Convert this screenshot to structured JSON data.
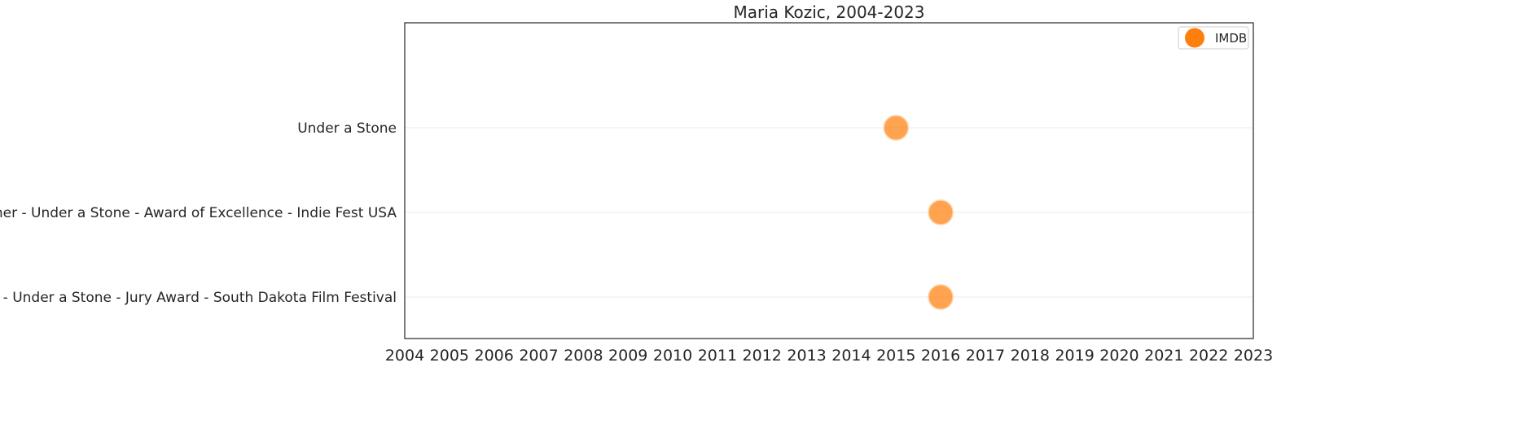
{
  "chart_data": {
    "type": "scatter",
    "title": "Maria Kozic, 2004-2023",
    "xlabel": "",
    "ylabel": "",
    "xlim": [
      2004,
      2023
    ],
    "x_ticks": [
      "2004",
      "2005",
      "2006",
      "2007",
      "2008",
      "2009",
      "2010",
      "2011",
      "2012",
      "2013",
      "2014",
      "2015",
      "2016",
      "2017",
      "2018",
      "2019",
      "2020",
      "2021",
      "2022",
      "2023"
    ],
    "categories": [
      "Under a Stone",
      "Winner - Under a Stone - Award of Excellence - Indie Fest USA",
      "Winner - Under a Stone - Jury Award - South Dakota Film Festival"
    ],
    "series": [
      {
        "name": "IMDB",
        "color": "#ff7f0e",
        "points": [
          {
            "x": 2015,
            "y": "Under a Stone"
          },
          {
            "x": 2016,
            "y": "Winner - Under a Stone - Award of Excellence - Indie Fest USA"
          },
          {
            "x": 2016,
            "y": "Winner - Under a Stone - Jury Award - South Dakota Film Festival"
          }
        ]
      }
    ],
    "grid": "horizontal",
    "legend_position": "top-right"
  }
}
